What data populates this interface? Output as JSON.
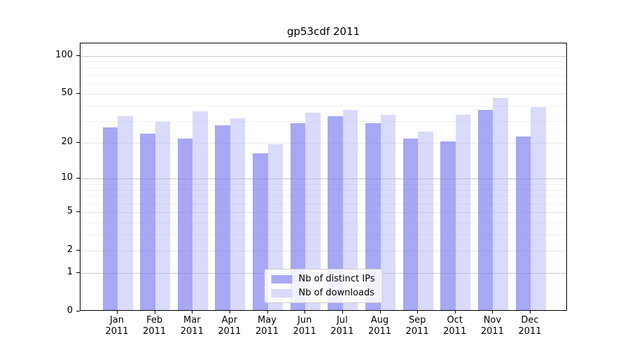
{
  "figure": {
    "title": "gp53cdf 2011"
  },
  "chart_data": {
    "type": "bar",
    "title": "gp53cdf 2011",
    "x_categories": [
      "Jan",
      "Feb",
      "Mar",
      "Apr",
      "May",
      "Jun",
      "Jul",
      "Aug",
      "Sep",
      "Oct",
      "Nov",
      "Dec"
    ],
    "x_year": "2011",
    "series": [
      {
        "name": "Nb of distinct IPs",
        "legend_color": "#a9a9f4",
        "fill": "rgba(121,121,238,0.66)",
        "values": [
          26,
          23,
          21,
          27,
          16,
          28,
          32,
          28,
          21,
          20,
          36,
          22
        ]
      },
      {
        "name": "Nb of downloads",
        "legend_color": "#d9d9fa",
        "fill": "rgba(173,173,243,0.45)",
        "values": [
          32,
          29,
          35,
          31,
          19,
          34,
          36,
          33,
          24,
          33,
          45,
          38
        ]
      }
    ],
    "y_scale": "log1p",
    "y_ticks": [
      0,
      1,
      2,
      5,
      10,
      20,
      50,
      100
    ],
    "y_tick_labels": [
      "0",
      "1",
      "2",
      "5",
      "10",
      "20",
      "50",
      "100"
    ],
    "y_minor_gridlines": [
      3,
      4,
      6,
      7,
      8,
      9,
      30,
      40,
      60,
      70,
      80,
      90
    ],
    "y_decade_gridlines": [
      1,
      10,
      100
    ],
    "ylim": [
      0,
      124
    ],
    "grid": true,
    "legend_position": "lower center"
  },
  "legend": {
    "items": [
      "Nb of distinct IPs",
      "Nb of downloads"
    ]
  }
}
